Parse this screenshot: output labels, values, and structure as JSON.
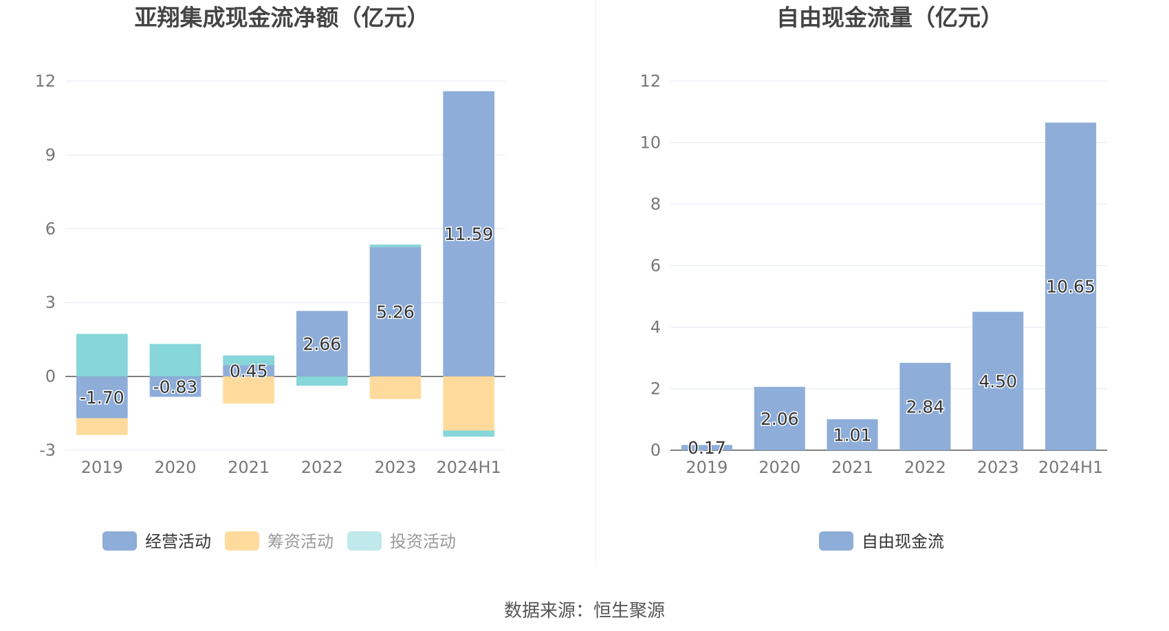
{
  "colors": {
    "operating": "#8eadd9",
    "financing": "#fedb9d",
    "investing": "#87d6d9",
    "investing_legend": "#bfe9ea",
    "free_cash_flow": "#8eadd9",
    "grid": "#e1e7f2",
    "axis_text": "#777777",
    "title": "#444444"
  },
  "source_label": "数据来源：恒生聚源",
  "chart_data": [
    {
      "type": "bar",
      "stacked": true,
      "title": "亚翔集成现金流净额（亿元）",
      "categories": [
        "2019",
        "2020",
        "2021",
        "2022",
        "2023",
        "2024H1"
      ],
      "yticks": [
        12,
        9,
        6,
        3,
        0,
        -3
      ],
      "ylim": [
        -3,
        12
      ],
      "grid": true,
      "legend_position": "bottom",
      "series": [
        {
          "name": "经营活动",
          "color_key": "operating",
          "values": [
            -1.7,
            -0.83,
            0.45,
            2.66,
            5.26,
            11.59
          ]
        },
        {
          "name": "筹资活动",
          "color_key": "financing",
          "values": [
            -0.68,
            0.0,
            -1.1,
            0.0,
            -0.92,
            -2.2
          ]
        },
        {
          "name": "投资活动",
          "color_key": "investing",
          "values": [
            1.73,
            1.32,
            0.4,
            -0.38,
            0.1,
            -0.25
          ]
        }
      ],
      "data_labels": [
        "-1.70",
        "-0.83",
        "0.45",
        "2.66",
        "5.26",
        "11.59"
      ]
    },
    {
      "type": "bar",
      "title": "自由现金流量（亿元）",
      "categories": [
        "2019",
        "2020",
        "2021",
        "2022",
        "2023",
        "2024H1"
      ],
      "yticks": [
        12,
        10,
        8,
        6,
        4,
        2,
        0
      ],
      "ylim": [
        0,
        12
      ],
      "grid": true,
      "legend_position": "bottom",
      "series": [
        {
          "name": "自由现金流",
          "color_key": "free_cash_flow",
          "values": [
            0.17,
            2.06,
            1.01,
            2.84,
            4.5,
            10.65
          ]
        }
      ],
      "data_labels": [
        "0.17",
        "2.06",
        "1.01",
        "2.84",
        "4.50",
        "10.65"
      ]
    }
  ]
}
